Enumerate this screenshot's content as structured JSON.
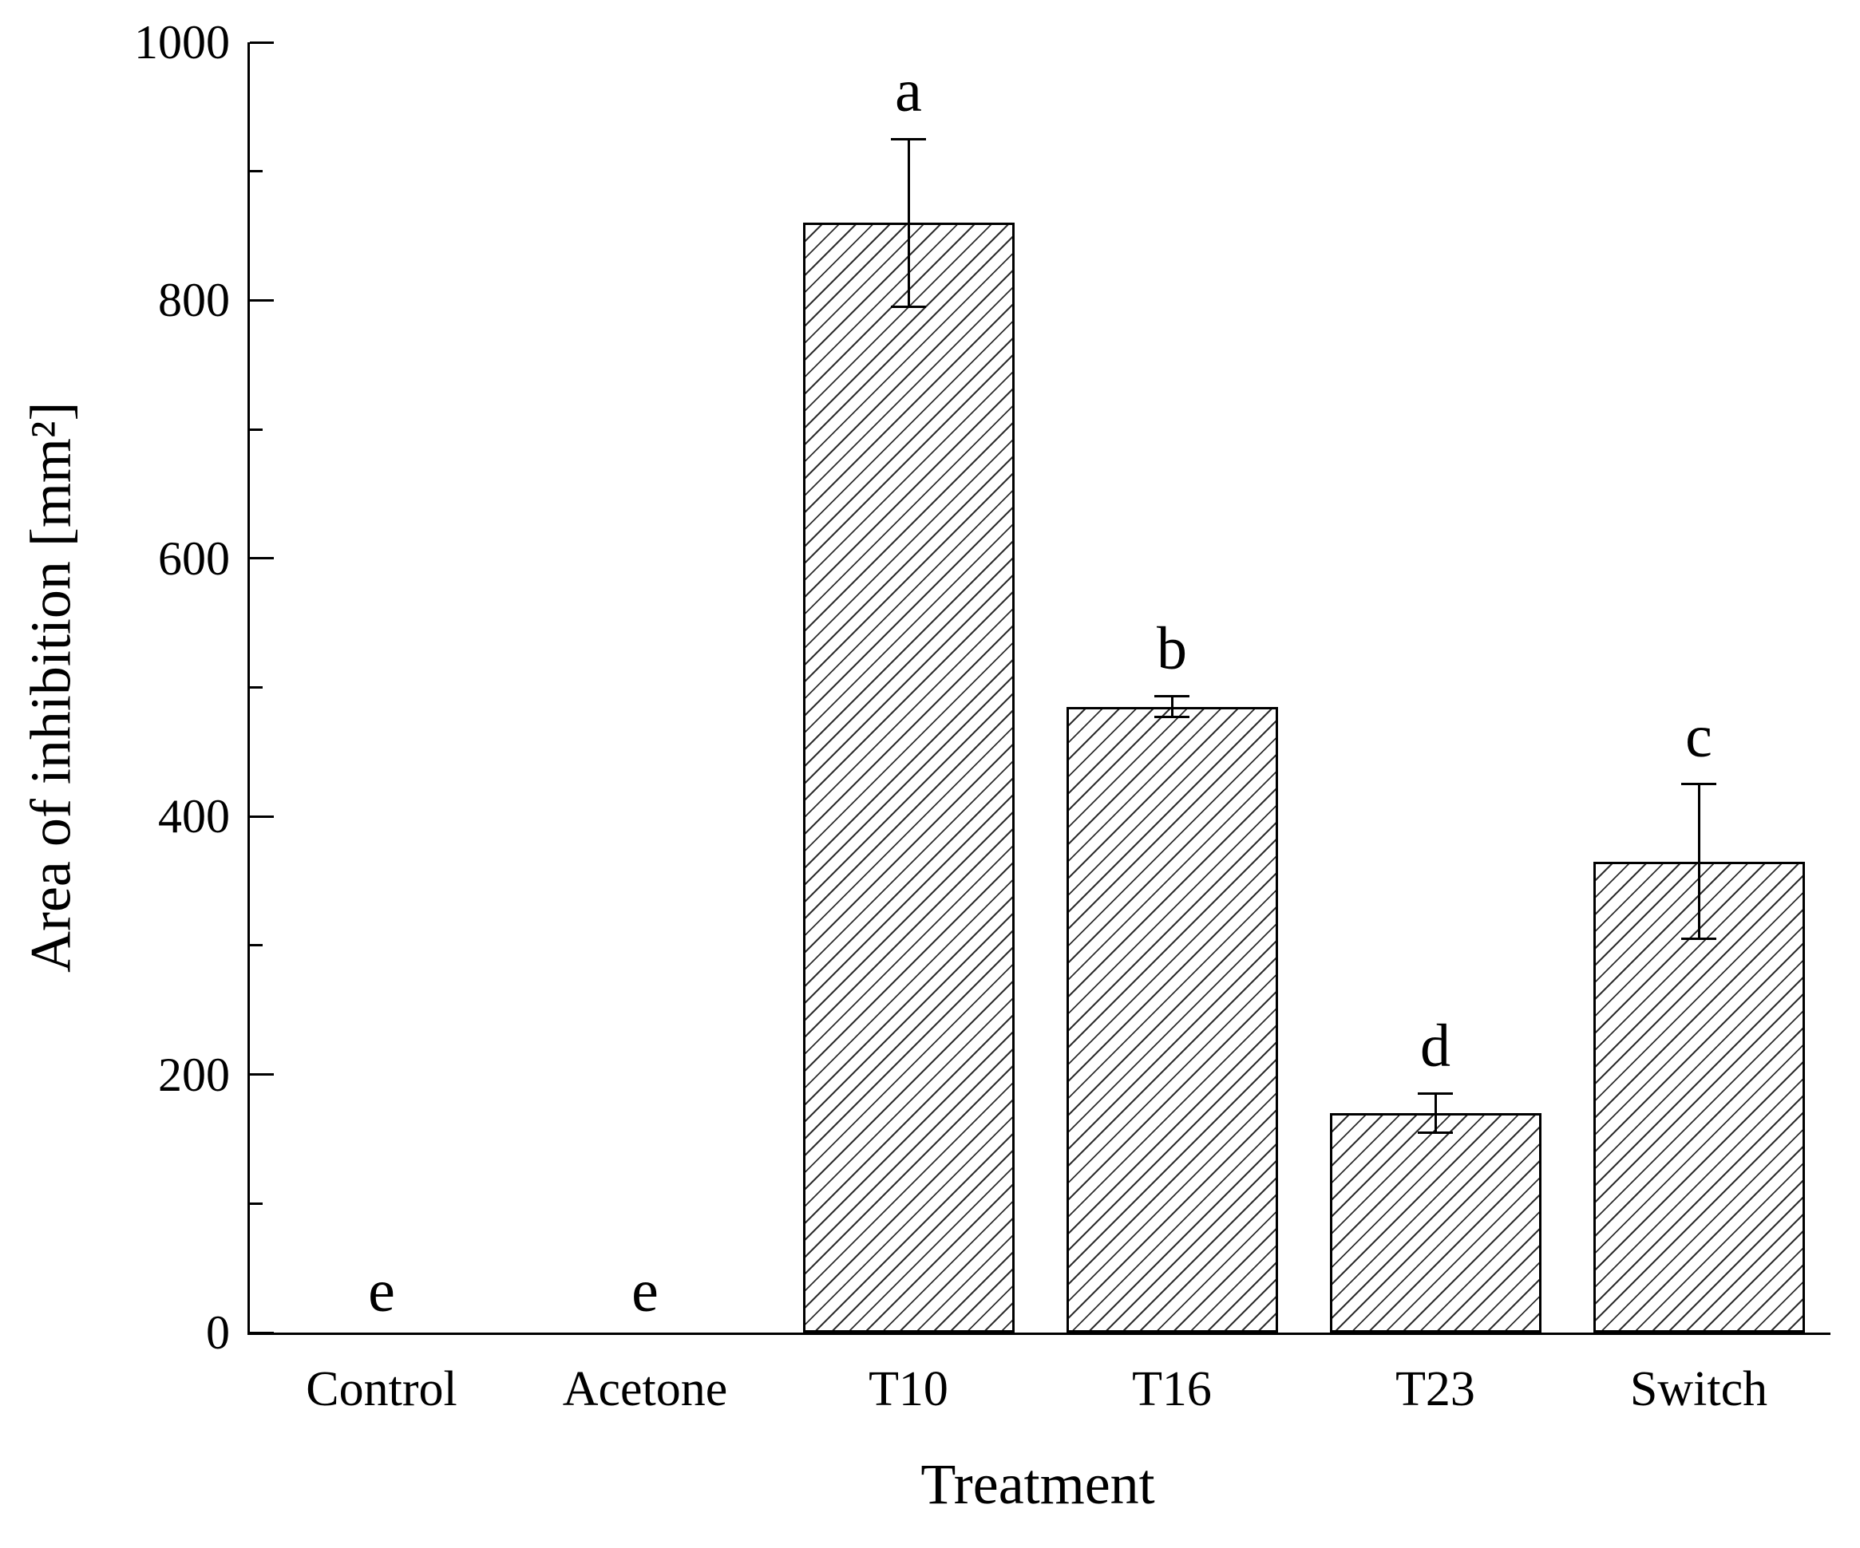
{
  "chart_data": {
    "type": "bar",
    "title": "",
    "xlabel": "Treatment",
    "ylabel": "Area of inhibition [mm²]",
    "categories": [
      "Control",
      "Acetone",
      "T10",
      "T16",
      "T23",
      "Switch"
    ],
    "values": [
      0,
      0,
      860,
      485,
      170,
      365
    ],
    "errors": [
      null,
      null,
      65,
      8,
      15,
      60
    ],
    "sig_letters": [
      "e",
      "e",
      "a",
      "b",
      "d",
      "c"
    ],
    "ylim": [
      0,
      1000
    ],
    "y_major_step": 200,
    "y_minor_step": 100,
    "y_major_ticks": [
      0,
      200,
      400,
      600,
      800,
      1000
    ],
    "bar_fill": "#ffffff",
    "bar_hatch": "diagonal-forward-slash",
    "bar_edge_color": "#000000",
    "error_bar_color": "#000000",
    "grid": false,
    "legend": false
  }
}
